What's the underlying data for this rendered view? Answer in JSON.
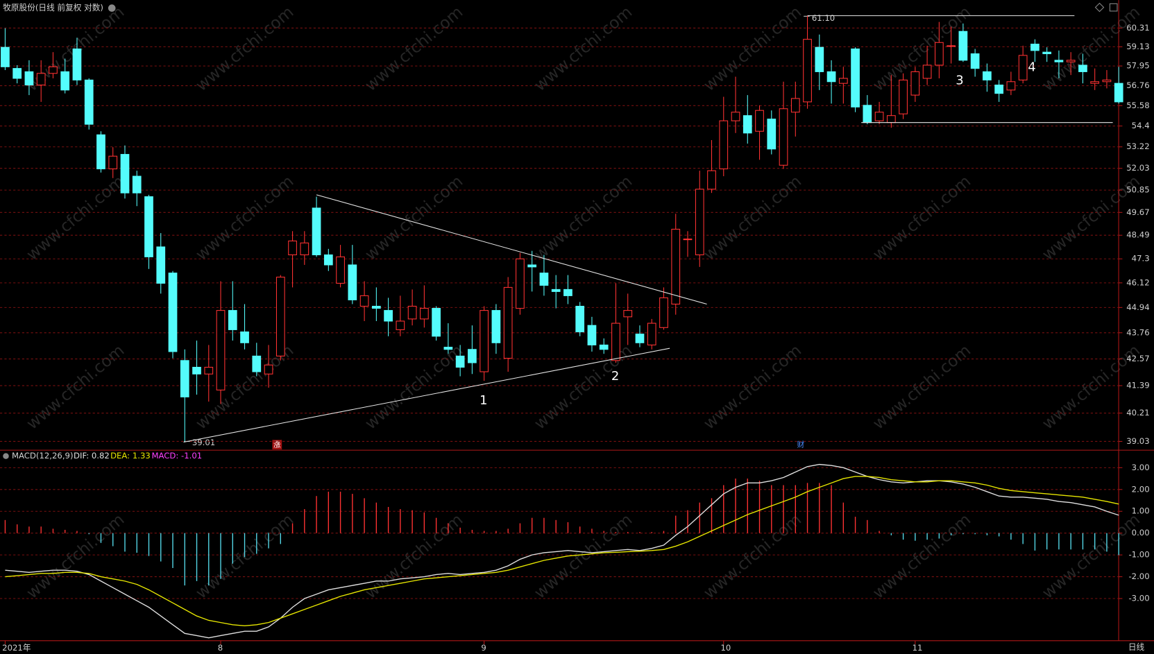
{
  "chart_data": [
    {
      "type": "candlestick",
      "title": "牧原股份(日线 前复权 对数)",
      "period": "日线",
      "watermark": "www.cfchi.com",
      "categories": [
        "2021年",
        null,
        null,
        null,
        null,
        null,
        null,
        null,
        null,
        null,
        null,
        null,
        null,
        null,
        null,
        null,
        null,
        null,
        "8",
        null,
        null,
        null,
        null,
        null,
        null,
        null,
        null,
        null,
        null,
        null,
        null,
        null,
        null,
        null,
        null,
        null,
        null,
        null,
        null,
        null,
        "9",
        null,
        null,
        null,
        null,
        null,
        null,
        null,
        null,
        null,
        null,
        null,
        null,
        null,
        null,
        null,
        null,
        null,
        null,
        null,
        "10",
        null,
        null,
        null,
        null,
        null,
        null,
        null,
        null,
        null,
        null,
        null,
        null,
        null,
        null,
        null,
        "11",
        null,
        null,
        null,
        null,
        null,
        null,
        null,
        null,
        null,
        null,
        null,
        null,
        null,
        null,
        null,
        null,
        null
      ],
      "open": [
        59.1,
        57.8,
        57.6,
        56.8,
        57.5,
        57.6,
        59.0,
        57.1,
        53.9,
        52.0,
        52.8,
        51.6,
        50.5,
        47.9,
        46.6,
        42.5,
        42.2,
        41.9,
        41.2,
        44.8,
        43.8,
        42.7,
        41.9,
        42.7,
        47.5,
        47.5,
        49.9,
        47.5,
        46.1,
        47.0,
        45.0,
        45.0,
        44.8,
        43.9,
        44.4,
        44.4,
        44.9,
        43.1,
        42.7,
        43.0,
        42.0,
        44.8,
        42.6,
        44.9,
        47.0,
        46.6,
        45.8,
        45.8,
        45.0,
        44.1,
        43.2,
        42.5,
        44.5,
        43.7,
        43.2,
        44.0,
        45.1,
        48.3,
        47.5,
        50.9,
        52.0,
        54.7,
        55.0,
        54.1,
        54.8,
        52.2,
        55.2,
        55.8,
        59.1,
        57.6,
        56.9,
        59.0,
        55.6,
        54.7,
        54.6,
        55.1,
        56.2,
        57.2,
        58.0,
        59.2,
        60.1,
        58.7,
        57.6,
        56.8,
        56.5,
        57.1,
        59.3,
        58.8,
        58.3,
        58.2,
        58.0,
        56.9,
        57.0,
        56.9
      ],
      "high": [
        60.3,
        58.0,
        58.3,
        58.3,
        58.8,
        58.4,
        59.7,
        57.2,
        54.1,
        53.2,
        53.3,
        51.9,
        50.6,
        48.6,
        46.7,
        43.0,
        43.4,
        43.2,
        46.2,
        46.2,
        45.1,
        43.3,
        43.2,
        46.5,
        48.7,
        48.7,
        50.5,
        47.8,
        48.0,
        48.0,
        46.2,
        45.9,
        45.4,
        45.5,
        45.8,
        46.0,
        45.0,
        44.2,
        43.2,
        44.1,
        45.0,
        45.1,
        46.4,
        47.6,
        47.7,
        47.5,
        46.5,
        46.5,
        45.2,
        44.5,
        43.5,
        46.1,
        45.6,
        44.1,
        44.4,
        45.9,
        49.6,
        48.7,
        51.9,
        53.6,
        56.1,
        57.3,
        56.2,
        55.6,
        55.3,
        57.0,
        57.0,
        61.1,
        59.9,
        58.3,
        57.9,
        59.1,
        56.2,
        55.8,
        57.4,
        57.5,
        57.9,
        59.2,
        60.7,
        60.4,
        60.6,
        59.0,
        58.1,
        57.1,
        57.6,
        59.2,
        59.6,
        59.1,
        58.9,
        58.8,
        58.7,
        57.8,
        57.7,
        57.9
      ],
      "low": [
        57.7,
        56.9,
        56.2,
        55.8,
        57.2,
        56.3,
        56.8,
        54.2,
        51.8,
        51.5,
        50.4,
        50.0,
        46.8,
        45.6,
        42.6,
        39.01,
        41.0,
        40.7,
        40.6,
        43.4,
        43.0,
        41.8,
        41.3,
        42.5,
        45.9,
        47.0,
        47.4,
        46.7,
        45.9,
        45.1,
        44.3,
        44.3,
        43.6,
        43.6,
        44.1,
        44.0,
        43.4,
        42.8,
        41.8,
        41.9,
        41.6,
        42.8,
        42.0,
        44.6,
        45.7,
        45.5,
        44.9,
        45.1,
        43.6,
        42.9,
        42.8,
        42.4,
        43.2,
        43.1,
        43.0,
        43.9,
        44.6,
        47.4,
        46.9,
        50.7,
        51.6,
        54.0,
        53.4,
        52.5,
        52.8,
        52.0,
        53.8,
        55.4,
        56.5,
        55.7,
        55.7,
        55.2,
        54.5,
        54.5,
        54.3,
        54.8,
        55.8,
        56.8,
        57.2,
        58.1,
        58.2,
        57.3,
        56.4,
        55.8,
        56.2,
        56.9,
        58.2,
        58.2,
        57.2,
        57.4,
        56.9,
        56.5,
        56.6,
        55.7
      ],
      "close": [
        57.9,
        57.2,
        56.8,
        57.5,
        57.9,
        56.5,
        57.1,
        54.5,
        52.0,
        52.7,
        50.7,
        50.7,
        47.4,
        46.1,
        42.9,
        40.9,
        41.9,
        42.2,
        44.8,
        43.9,
        43.3,
        42.0,
        42.3,
        46.4,
        48.2,
        48.1,
        47.5,
        47.0,
        47.4,
        45.3,
        45.5,
        44.9,
        44.3,
        44.3,
        45.0,
        44.9,
        43.6,
        43.0,
        42.2,
        42.4,
        44.8,
        43.3,
        45.9,
        47.3,
        46.9,
        46.0,
        45.7,
        45.5,
        43.8,
        43.2,
        43.0,
        44.2,
        44.8,
        43.3,
        44.2,
        45.4,
        48.8,
        48.3,
        50.9,
        51.9,
        54.7,
        55.2,
        54.0,
        55.3,
        53.1,
        55.4,
        56.0,
        59.6,
        57.6,
        57.0,
        57.2,
        55.5,
        54.6,
        55.2,
        55.0,
        57.1,
        57.6,
        58.0,
        59.4,
        59.2,
        58.3,
        57.8,
        57.1,
        56.3,
        57.0,
        58.6,
        58.9,
        58.7,
        58.2,
        58.3,
        57.6,
        57.0,
        57.1,
        55.8
      ],
      "up_color": "#ff3232",
      "down_color": "#54fcfc",
      "log_scale": true,
      "grid": true,
      "ylim": [
        38.73,
        61.16
      ],
      "yticks": [
        60.31,
        59.13,
        57.95,
        56.76,
        55.58,
        54.4,
        53.22,
        52.03,
        50.85,
        49.67,
        48.49,
        47.3,
        46.12,
        44.94,
        43.76,
        42.57,
        41.39,
        40.21,
        39.03
      ],
      "high_label": "61.10",
      "low_label": "39.01",
      "marks": [
        "1",
        "2",
        "3",
        "4"
      ],
      "badges": [
        "涨",
        "财"
      ],
      "trend_lines": [
        {
          "x": [
            26,
            58.6
          ],
          "y": [
            50.6,
            45.1
          ]
        },
        {
          "x": [
            14.9,
            55.5
          ],
          "y": [
            39.0,
            43.05
          ]
        },
        {
          "x": [
            67,
            89.3
          ],
          "y": [
            61.1,
            61.1
          ]
        },
        {
          "x": [
            71.5,
            92.5
          ],
          "y": [
            54.6,
            54.6
          ]
        }
      ]
    },
    {
      "type": "macd",
      "title": "MACD(12,26,9)",
      "series": [
        {
          "name": "DIF: 0.82",
          "color": "#e0e0e0",
          "values": [
            -1.7,
            -1.75,
            -1.8,
            -1.75,
            -1.7,
            -1.7,
            -1.75,
            -1.9,
            -2.2,
            -2.5,
            -2.8,
            -3.1,
            -3.4,
            -3.8,
            -4.2,
            -4.6,
            -4.7,
            -4.8,
            -4.7,
            -4.6,
            -4.5,
            -4.5,
            -4.3,
            -3.9,
            -3.4,
            -3.0,
            -2.8,
            -2.6,
            -2.5,
            -2.4,
            -2.3,
            -2.2,
            -2.2,
            -2.1,
            -2.05,
            -2.0,
            -1.9,
            -1.85,
            -1.9,
            -1.85,
            -1.8,
            -1.7,
            -1.5,
            -1.2,
            -1.0,
            -0.9,
            -0.85,
            -0.8,
            -0.85,
            -0.9,
            -0.85,
            -0.8,
            -0.75,
            -0.8,
            -0.7,
            -0.55,
            -0.1,
            0.3,
            0.8,
            1.3,
            1.8,
            2.1,
            2.3,
            2.3,
            2.4,
            2.55,
            2.8,
            3.05,
            3.15,
            3.1,
            3.0,
            2.8,
            2.6,
            2.45,
            2.35,
            2.3,
            2.35,
            2.4,
            2.4,
            2.35,
            2.25,
            2.1,
            1.9,
            1.7,
            1.65,
            1.65,
            1.6,
            1.55,
            1.45,
            1.4,
            1.3,
            1.2,
            1.0,
            0.82
          ]
        },
        {
          "name": "DEA: 1.33",
          "color": "#e6e600",
          "values": [
            -2.0,
            -1.95,
            -1.9,
            -1.85,
            -1.85,
            -1.8,
            -1.8,
            -1.85,
            -2.0,
            -2.1,
            -2.2,
            -2.35,
            -2.6,
            -2.9,
            -3.2,
            -3.5,
            -3.8,
            -4.0,
            -4.1,
            -4.2,
            -4.25,
            -4.2,
            -4.1,
            -3.9,
            -3.7,
            -3.5,
            -3.3,
            -3.1,
            -2.9,
            -2.75,
            -2.6,
            -2.5,
            -2.4,
            -2.3,
            -2.2,
            -2.1,
            -2.05,
            -2.0,
            -1.95,
            -1.9,
            -1.85,
            -1.8,
            -1.7,
            -1.55,
            -1.4,
            -1.25,
            -1.15,
            -1.05,
            -1.0,
            -0.95,
            -0.9,
            -0.88,
            -0.85,
            -0.83,
            -0.8,
            -0.75,
            -0.6,
            -0.4,
            -0.15,
            0.1,
            0.35,
            0.6,
            0.85,
            1.05,
            1.25,
            1.45,
            1.65,
            1.9,
            2.1,
            2.3,
            2.5,
            2.6,
            2.6,
            2.55,
            2.45,
            2.4,
            2.35,
            2.35,
            2.4,
            2.4,
            2.35,
            2.3,
            2.2,
            2.05,
            1.95,
            1.9,
            1.85,
            1.8,
            1.75,
            1.7,
            1.65,
            1.55,
            1.45,
            1.33
          ]
        }
      ],
      "histogram": {
        "name": "MACD: -1.01",
        "color": "#ff40ff",
        "up_color": "#ff3232",
        "down_color": "#54d8e8",
        "values": [
          0.6,
          0.4,
          0.3,
          0.3,
          0.2,
          0.15,
          0.1,
          -0.05,
          -0.45,
          -0.6,
          -0.85,
          -0.9,
          -1.05,
          -1.3,
          -1.6,
          -2.4,
          -2.2,
          -2.4,
          -2.1,
          -1.4,
          -1.1,
          -0.95,
          -0.7,
          -0.5,
          0.45,
          1.1,
          1.7,
          1.9,
          1.9,
          1.8,
          1.6,
          1.4,
          1.2,
          1.1,
          1.05,
          0.95,
          0.7,
          0.45,
          0.25,
          0.15,
          0.1,
          0.1,
          0.2,
          0.45,
          0.7,
          0.7,
          0.6,
          0.5,
          0.3,
          0.2,
          0.1,
          0.05,
          0.05,
          0.05,
          0.05,
          0.1,
          0.8,
          1.05,
          1.4,
          1.6,
          2.2,
          2.5,
          2.5,
          2.4,
          2.2,
          2.2,
          2.2,
          2.3,
          2.3,
          2.2,
          1.4,
          0.75,
          0.6,
          0.1,
          -0.1,
          -0.3,
          -0.35,
          -0.3,
          -0.25,
          -0.1,
          -0.05,
          -0.05,
          -0.1,
          -0.15,
          -0.3,
          -0.5,
          -0.8,
          -0.75,
          -0.75,
          -0.75,
          -0.75,
          -0.75,
          -0.85,
          -1.01
        ]
      },
      "ylim": [
        -4.9,
        3.7
      ],
      "grid": true,
      "yticks": [
        {
          "value": 3,
          "label": "3.00"
        },
        {
          "value": 2,
          "label": "2.00"
        },
        {
          "value": 1,
          "label": "1.00"
        },
        {
          "value": 0,
          "label": "0.00"
        },
        {
          "value": -1,
          "label": "-1.00"
        },
        {
          "value": -2,
          "label": "-2.00"
        },
        {
          "value": -3,
          "label": "-3.00"
        }
      ]
    }
  ]
}
